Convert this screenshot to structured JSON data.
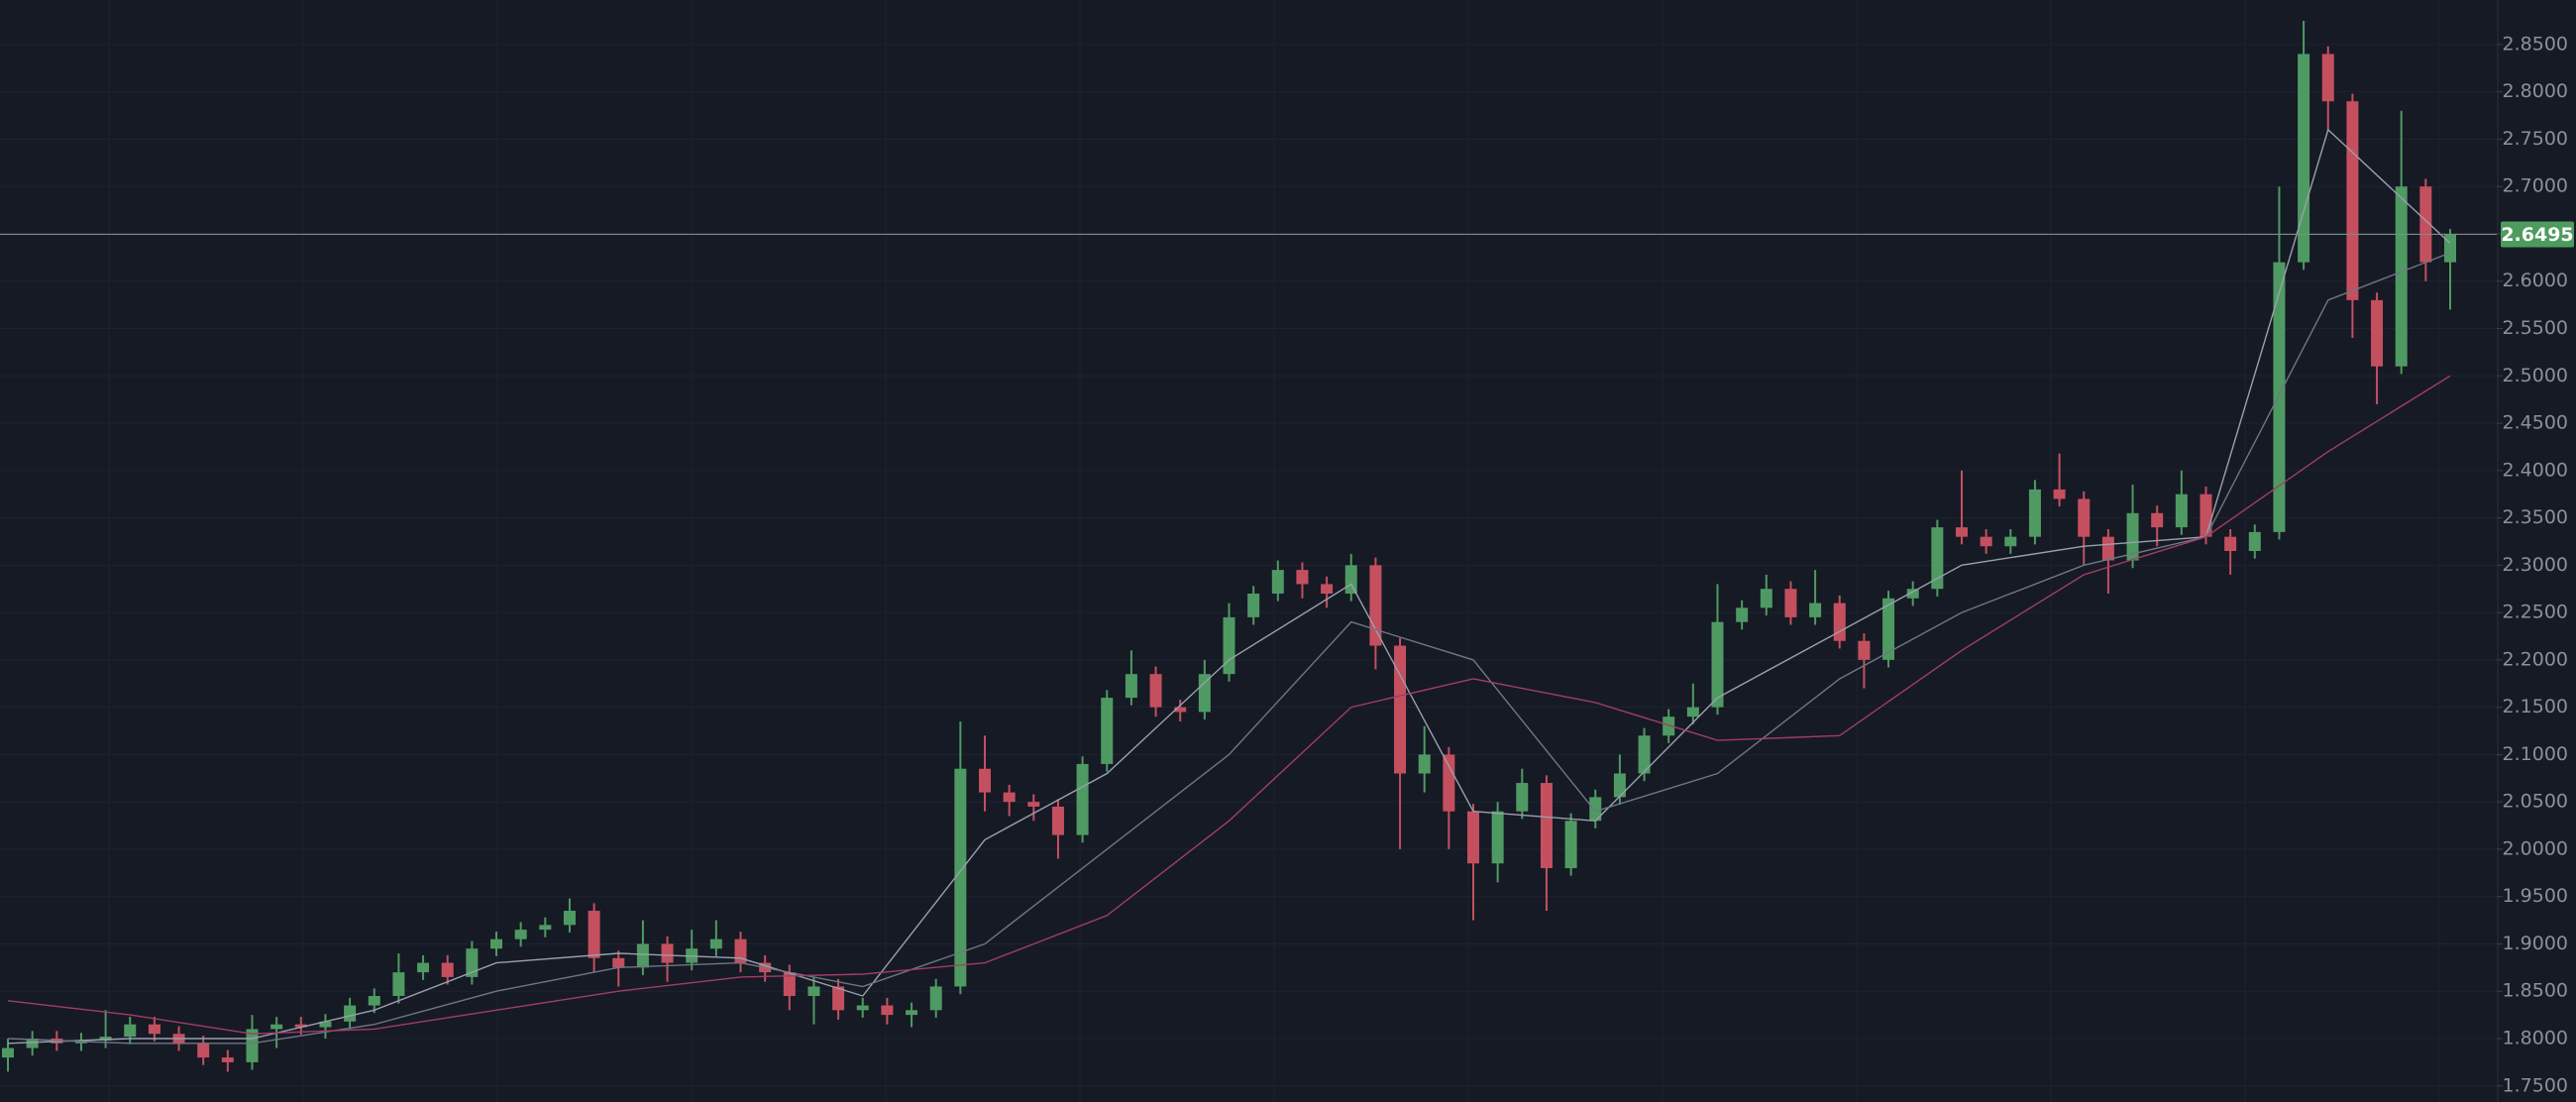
{
  "chart_data": {
    "type": "candlestick",
    "up_color": "#4f9a63",
    "down_color": "#c4505f",
    "grid": true,
    "ylim": [
      1.733,
      2.897
    ],
    "yticks": [
      {
        "value": 1.75,
        "label": "1.7500"
      },
      {
        "value": 1.8,
        "label": "1.8000"
      },
      {
        "value": 1.85,
        "label": "1.8500"
      },
      {
        "value": 1.9,
        "label": "1.9000"
      },
      {
        "value": 1.95,
        "label": "1.9500"
      },
      {
        "value": 2.0,
        "label": "2.0000"
      },
      {
        "value": 2.05,
        "label": "2.0500"
      },
      {
        "value": 2.1,
        "label": "2.1000"
      },
      {
        "value": 2.15,
        "label": "2.1500"
      },
      {
        "value": 2.2,
        "label": "2.2000"
      },
      {
        "value": 2.25,
        "label": "2.2500"
      },
      {
        "value": 2.3,
        "label": "2.3000"
      },
      {
        "value": 2.35,
        "label": "2.3500"
      },
      {
        "value": 2.4,
        "label": "2.4000"
      },
      {
        "value": 2.45,
        "label": "2.4500"
      },
      {
        "value": 2.5,
        "label": "2.5000"
      },
      {
        "value": 2.55,
        "label": "2.5500"
      },
      {
        "value": 2.6,
        "label": "2.6000"
      },
      {
        "value": 2.65,
        "label": "2.6500"
      },
      {
        "value": 2.7,
        "label": "2.7000"
      },
      {
        "value": 2.75,
        "label": "2.7500"
      },
      {
        "value": 2.8,
        "label": "2.8000"
      },
      {
        "value": 2.85,
        "label": "2.8500"
      }
    ],
    "last_price": 2.6495,
    "last_price_color": "#4e9b5e",
    "candles": {
      "open": [
        1.78,
        1.79,
        1.8,
        1.795,
        1.798,
        1.802,
        1.815,
        1.805,
        1.795,
        1.78,
        1.775,
        1.81,
        1.815,
        1.812,
        1.818,
        1.835,
        1.845,
        1.87,
        1.88,
        1.865,
        1.895,
        1.905,
        1.915,
        1.92,
        1.935,
        1.885,
        1.875,
        1.9,
        1.88,
        1.895,
        1.905,
        1.88,
        1.87,
        1.845,
        1.855,
        1.83,
        1.835,
        1.825,
        1.83,
        1.855,
        2.085,
        2.06,
        2.05,
        2.045,
        2.015,
        2.09,
        2.16,
        2.185,
        2.15,
        2.145,
        2.185,
        2.245,
        2.27,
        2.295,
        2.28,
        2.27,
        2.3,
        2.215,
        2.08,
        2.1,
        2.04,
        1.985,
        2.04,
        2.07,
        1.98,
        2.03,
        2.055,
        2.08,
        2.12,
        2.14,
        2.15,
        2.24,
        2.255,
        2.275,
        2.245,
        2.26,
        2.22,
        2.2,
        2.265,
        2.275,
        2.34,
        2.33,
        2.32,
        2.33,
        2.38,
        2.37,
        2.33,
        2.305,
        2.355,
        2.34,
        2.375,
        2.33,
        2.315,
        2.335,
        2.62,
        2.84,
        2.79,
        2.58,
        2.51,
        2.7,
        2.62
      ],
      "high": [
        1.8,
        1.808,
        1.808,
        1.806,
        1.83,
        1.823,
        1.823,
        1.813,
        1.803,
        1.788,
        1.825,
        1.823,
        1.823,
        1.826,
        1.843,
        1.853,
        1.89,
        1.888,
        1.888,
        1.903,
        1.913,
        1.923,
        1.928,
        1.948,
        1.943,
        1.893,
        1.925,
        1.908,
        1.915,
        1.925,
        1.913,
        1.888,
        1.878,
        1.865,
        1.863,
        1.843,
        1.843,
        1.838,
        1.863,
        2.135,
        2.12,
        2.068,
        2.058,
        2.053,
        2.098,
        2.168,
        2.21,
        2.193,
        2.158,
        2.2,
        2.26,
        2.278,
        2.305,
        2.303,
        2.288,
        2.312,
        2.308,
        2.223,
        2.13,
        2.108,
        2.048,
        2.05,
        2.085,
        2.078,
        2.038,
        2.063,
        2.1,
        2.128,
        2.148,
        2.175,
        2.28,
        2.263,
        2.29,
        2.283,
        2.295,
        2.268,
        2.228,
        2.273,
        2.283,
        2.348,
        2.4,
        2.338,
        2.338,
        2.39,
        2.418,
        2.378,
        2.338,
        2.385,
        2.363,
        2.4,
        2.383,
        2.338,
        2.343,
        2.7,
        2.875,
        2.848,
        2.798,
        2.588,
        2.78,
        2.708,
        2.655
      ],
      "low": [
        1.765,
        1.782,
        1.787,
        1.787,
        1.79,
        1.794,
        1.797,
        1.787,
        1.772,
        1.765,
        1.767,
        1.79,
        1.804,
        1.8,
        1.81,
        1.827,
        1.837,
        1.862,
        1.857,
        1.857,
        1.887,
        1.897,
        1.907,
        1.912,
        1.87,
        1.855,
        1.867,
        1.86,
        1.872,
        1.887,
        1.87,
        1.86,
        1.83,
        1.815,
        1.82,
        1.822,
        1.815,
        1.812,
        1.822,
        1.847,
        2.04,
        2.035,
        2.03,
        1.99,
        2.007,
        2.082,
        2.152,
        2.14,
        2.135,
        2.137,
        2.177,
        2.237,
        2.262,
        2.265,
        2.255,
        2.262,
        2.19,
        2.0,
        2.06,
        2.0,
        1.925,
        1.965,
        2.032,
        1.935,
        1.972,
        2.022,
        2.047,
        2.072,
        2.112,
        2.132,
        2.142,
        2.232,
        2.247,
        2.237,
        2.237,
        2.212,
        2.17,
        2.192,
        2.257,
        2.267,
        2.322,
        2.312,
        2.312,
        2.322,
        2.362,
        2.3,
        2.27,
        2.297,
        2.32,
        2.332,
        2.322,
        2.29,
        2.307,
        2.327,
        2.612,
        2.76,
        2.54,
        2.47,
        2.502,
        2.6,
        2.57
      ],
      "close": [
        1.79,
        1.8,
        1.795,
        1.798,
        1.802,
        1.815,
        1.805,
        1.795,
        1.78,
        1.775,
        1.81,
        1.815,
        1.812,
        1.818,
        1.835,
        1.845,
        1.87,
        1.88,
        1.865,
        1.895,
        1.905,
        1.915,
        1.92,
        1.935,
        1.885,
        1.875,
        1.9,
        1.88,
        1.895,
        1.905,
        1.88,
        1.87,
        1.845,
        1.855,
        1.83,
        1.835,
        1.825,
        1.83,
        1.855,
        2.085,
        2.06,
        2.05,
        2.045,
        2.015,
        2.09,
        2.16,
        2.185,
        2.15,
        2.145,
        2.185,
        2.245,
        2.27,
        2.295,
        2.28,
        2.27,
        2.3,
        2.215,
        2.08,
        2.1,
        2.04,
        1.985,
        2.04,
        2.07,
        1.98,
        2.03,
        2.055,
        2.08,
        2.12,
        2.14,
        2.15,
        2.24,
        2.255,
        2.275,
        2.245,
        2.26,
        2.22,
        2.2,
        2.265,
        2.275,
        2.34,
        2.33,
        2.32,
        2.33,
        2.38,
        2.37,
        2.33,
        2.305,
        2.355,
        2.34,
        2.375,
        2.33,
        2.315,
        2.335,
        2.62,
        2.84,
        2.79,
        2.58,
        2.51,
        2.7,
        2.62,
        2.6495
      ]
    },
    "ma_lines": [
      {
        "color": "#9aa0ad",
        "x": [
          0,
          5,
          10,
          15,
          20,
          25,
          30,
          35,
          40,
          45,
          50,
          55,
          60,
          65,
          70,
          75,
          80,
          85,
          90,
          95,
          100
        ],
        "values": [
          1.795,
          1.8,
          1.8,
          1.83,
          1.88,
          1.89,
          1.885,
          1.845,
          2.01,
          2.08,
          2.2,
          2.28,
          2.04,
          2.03,
          2.16,
          2.23,
          2.3,
          2.32,
          2.33,
          2.76,
          2.64
        ]
      },
      {
        "color": "#6f7684",
        "x": [
          0,
          5,
          10,
          15,
          20,
          25,
          30,
          35,
          40,
          45,
          50,
          55,
          60,
          65,
          70,
          75,
          80,
          85,
          90,
          95,
          100
        ],
        "values": [
          1.8,
          1.795,
          1.795,
          1.815,
          1.85,
          1.875,
          1.88,
          1.855,
          1.9,
          2.0,
          2.1,
          2.24,
          2.2,
          2.04,
          2.08,
          2.18,
          2.25,
          2.3,
          2.33,
          2.58,
          2.63
        ]
      },
      {
        "color": "#a13d66",
        "x": [
          0,
          5,
          10,
          15,
          20,
          25,
          30,
          35,
          40,
          45,
          50,
          55,
          60,
          65,
          70,
          75,
          80,
          85,
          90,
          95,
          100
        ],
        "values": [
          1.84,
          1.825,
          1.805,
          1.81,
          1.83,
          1.85,
          1.865,
          1.868,
          1.88,
          1.93,
          2.03,
          2.15,
          2.18,
          2.155,
          2.115,
          2.12,
          2.21,
          2.29,
          2.33,
          2.42,
          2.5
        ]
      }
    ]
  }
}
